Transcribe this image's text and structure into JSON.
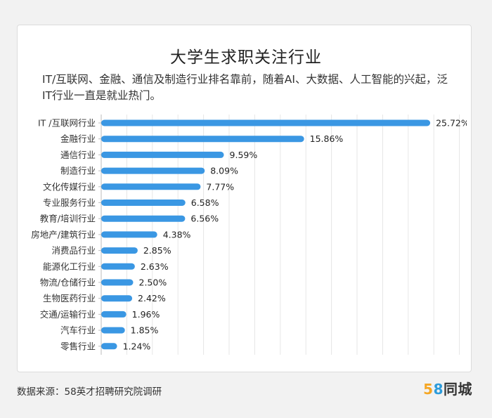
{
  "title": "大学生求职关注行业",
  "subtitle": "IT/互联网、金融、通信及制造行业排名靠前，随着AI、大数据、人工智能的兴起，泛IT行业一直是就业热门。",
  "source": "数据来源：58英才招聘研究院调研",
  "logo": {
    "digit1": "5",
    "digit2": "8",
    "text": "同城"
  },
  "colors": {
    "bar": "#3a97e3",
    "grid": "#e6e6e6",
    "card_bg": "#ffffff",
    "page_bg": "#f2f2f2"
  },
  "chart_data": {
    "type": "bar",
    "orientation": "horizontal",
    "categories": [
      "IT /互联网行业",
      "金融行业",
      "通信行业",
      "制造行业",
      "文化传媒行业",
      "专业服务行业",
      "教育/培训行业",
      "房地产/建筑行业",
      "消费品行业",
      "能源化工行业",
      "物流/仓储行业",
      "生物医药行业",
      "交通/运输行业",
      "汽车行业",
      "零售行业"
    ],
    "values": [
      25.72,
      15.86,
      9.59,
      8.09,
      7.77,
      6.58,
      6.56,
      4.38,
      2.85,
      2.63,
      2.5,
      2.42,
      1.96,
      1.85,
      1.24
    ],
    "value_labels": [
      "25.72%",
      "15.86%",
      "9.59%",
      "8.09%",
      "7.77%",
      "6.58%",
      "6.56%",
      "4.38%",
      "2.85%",
      "2.63%",
      "2.50%",
      "2.42%",
      "1.96%",
      "1.85%",
      "1.24%"
    ],
    "xlim": [
      0,
      30
    ],
    "grid": true
  }
}
